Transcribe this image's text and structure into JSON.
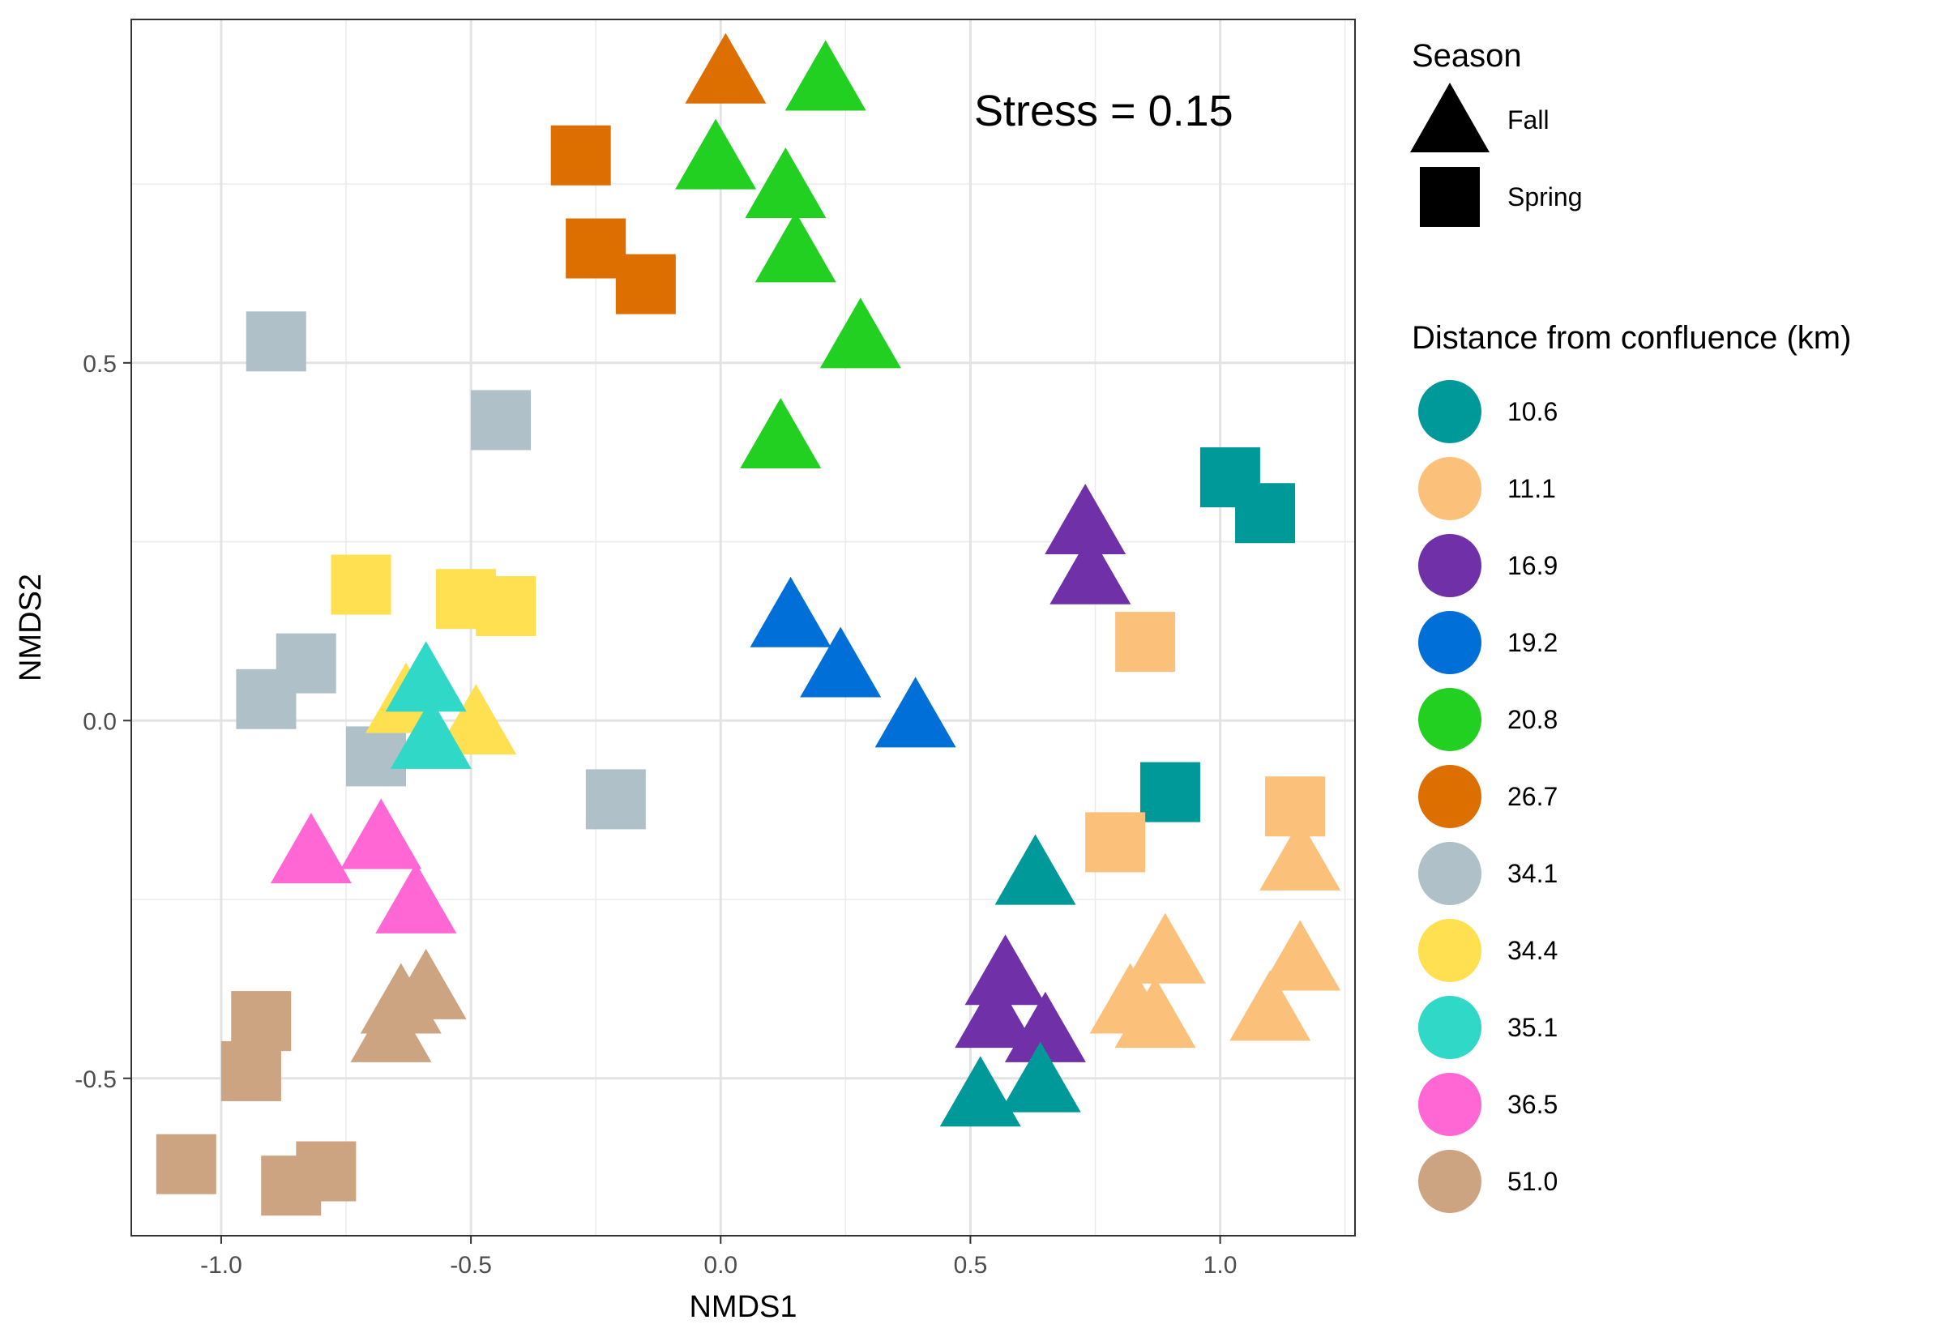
{
  "chart_data": {
    "type": "scatter",
    "xlabel": "NMDS1",
    "ylabel": "NMDS2",
    "xlim": [
      -1.18,
      1.27
    ],
    "ylim": [
      -0.72,
      0.98
    ],
    "x_ticks": [
      -1.0,
      -0.5,
      0.0,
      0.5,
      1.0
    ],
    "x_tick_labels": [
      "-1.0",
      "-0.5",
      "0.0",
      "0.5",
      "1.0"
    ],
    "y_ticks": [
      -0.5,
      0.0,
      0.5
    ],
    "y_tick_labels": [
      "-0.5",
      "0.0",
      "0.5"
    ],
    "grid": true,
    "annotation": "Stress = 0.15",
    "legend_position": "right",
    "shape_legend": {
      "title": "Season",
      "entries": [
        {
          "label": "Fall",
          "shape": "triangle"
        },
        {
          "label": "Spring",
          "shape": "square"
        }
      ]
    },
    "color_legend": {
      "title": "Distance from confluence (km)",
      "entries": [
        {
          "label": "10.6",
          "color": "#009999"
        },
        {
          "label": "11.1",
          "color": "#FBC07A"
        },
        {
          "label": "16.9",
          "color": "#7030A8"
        },
        {
          "label": "19.2",
          "color": "#0070D8"
        },
        {
          "label": "20.8",
          "color": "#22D022"
        },
        {
          "label": "26.7",
          "color": "#DD6E00"
        },
        {
          "label": "34.1",
          "color": "#B0C0C8"
        },
        {
          "label": "34.4",
          "color": "#FFE050"
        },
        {
          "label": "35.1",
          "color": "#30D8C8"
        },
        {
          "label": "36.5",
          "color": "#FF68D4"
        },
        {
          "label": "51.0",
          "color": "#CDA481"
        }
      ]
    },
    "points": [
      {
        "x": 0.01,
        "y": 0.9,
        "season": "Fall",
        "distance": "26.7"
      },
      {
        "x": -0.28,
        "y": 0.79,
        "season": "Spring",
        "distance": "26.7"
      },
      {
        "x": -0.25,
        "y": 0.66,
        "season": "Spring",
        "distance": "26.7"
      },
      {
        "x": -0.15,
        "y": 0.61,
        "season": "Spring",
        "distance": "26.7"
      },
      {
        "x": 0.21,
        "y": 0.89,
        "season": "Fall",
        "distance": "20.8"
      },
      {
        "x": -0.01,
        "y": 0.78,
        "season": "Fall",
        "distance": "20.8"
      },
      {
        "x": 0.13,
        "y": 0.74,
        "season": "Fall",
        "distance": "20.8"
      },
      {
        "x": 0.15,
        "y": 0.65,
        "season": "Fall",
        "distance": "20.8"
      },
      {
        "x": 0.28,
        "y": 0.53,
        "season": "Fall",
        "distance": "20.8"
      },
      {
        "x": 0.12,
        "y": 0.39,
        "season": "Fall",
        "distance": "20.8"
      },
      {
        "x": -0.89,
        "y": 0.53,
        "season": "Spring",
        "distance": "34.1"
      },
      {
        "x": -0.44,
        "y": 0.42,
        "season": "Spring",
        "distance": "34.1"
      },
      {
        "x": -0.83,
        "y": 0.08,
        "season": "Spring",
        "distance": "34.1"
      },
      {
        "x": -0.91,
        "y": 0.03,
        "season": "Spring",
        "distance": "34.1"
      },
      {
        "x": -0.69,
        "y": -0.05,
        "season": "Spring",
        "distance": "34.1"
      },
      {
        "x": -0.21,
        "y": -0.11,
        "season": "Spring",
        "distance": "34.1"
      },
      {
        "x": -0.72,
        "y": 0.19,
        "season": "Spring",
        "distance": "34.4"
      },
      {
        "x": -0.51,
        "y": 0.17,
        "season": "Spring",
        "distance": "34.4"
      },
      {
        "x": -0.43,
        "y": 0.16,
        "season": "Spring",
        "distance": "34.4"
      },
      {
        "x": -0.63,
        "y": 0.02,
        "season": "Fall",
        "distance": "34.4"
      },
      {
        "x": -0.49,
        "y": -0.01,
        "season": "Fall",
        "distance": "34.4"
      },
      {
        "x": -0.59,
        "y": 0.05,
        "season": "Fall",
        "distance": "35.1"
      },
      {
        "x": -0.58,
        "y": -0.03,
        "season": "Fall",
        "distance": "35.1"
      },
      {
        "x": -0.82,
        "y": -0.19,
        "season": "Fall",
        "distance": "36.5"
      },
      {
        "x": -0.68,
        "y": -0.17,
        "season": "Fall",
        "distance": "36.5"
      },
      {
        "x": -0.61,
        "y": -0.26,
        "season": "Fall",
        "distance": "36.5"
      },
      {
        "x": -0.59,
        "y": -0.38,
        "season": "Fall",
        "distance": "51.0"
      },
      {
        "x": -0.64,
        "y": -0.4,
        "season": "Fall",
        "distance": "51.0"
      },
      {
        "x": -0.66,
        "y": -0.44,
        "season": "Fall",
        "distance": "51.0"
      },
      {
        "x": -0.92,
        "y": -0.42,
        "season": "Spring",
        "distance": "51.0"
      },
      {
        "x": -0.94,
        "y": -0.49,
        "season": "Spring",
        "distance": "51.0"
      },
      {
        "x": -1.07,
        "y": -0.62,
        "season": "Spring",
        "distance": "51.0"
      },
      {
        "x": -0.86,
        "y": -0.65,
        "season": "Spring",
        "distance": "51.0"
      },
      {
        "x": -0.79,
        "y": -0.63,
        "season": "Spring",
        "distance": "51.0"
      },
      {
        "x": 0.14,
        "y": 0.14,
        "season": "Fall",
        "distance": "19.2"
      },
      {
        "x": 0.24,
        "y": 0.07,
        "season": "Fall",
        "distance": "19.2"
      },
      {
        "x": 0.39,
        "y": 0.0,
        "season": "Fall",
        "distance": "19.2"
      },
      {
        "x": 0.73,
        "y": 0.27,
        "season": "Fall",
        "distance": "16.9"
      },
      {
        "x": 0.74,
        "y": 0.2,
        "season": "Fall",
        "distance": "16.9"
      },
      {
        "x": 0.57,
        "y": -0.36,
        "season": "Fall",
        "distance": "16.9"
      },
      {
        "x": 0.55,
        "y": -0.42,
        "season": "Fall",
        "distance": "16.9"
      },
      {
        "x": 0.65,
        "y": -0.44,
        "season": "Fall",
        "distance": "16.9"
      },
      {
        "x": 1.02,
        "y": 0.34,
        "season": "Spring",
        "distance": "10.6"
      },
      {
        "x": 1.09,
        "y": 0.29,
        "season": "Spring",
        "distance": "10.6"
      },
      {
        "x": 0.9,
        "y": -0.1,
        "season": "Spring",
        "distance": "10.6"
      },
      {
        "x": 0.63,
        "y": -0.22,
        "season": "Fall",
        "distance": "10.6"
      },
      {
        "x": 0.64,
        "y": -0.51,
        "season": "Fall",
        "distance": "10.6"
      },
      {
        "x": 0.52,
        "y": -0.53,
        "season": "Fall",
        "distance": "10.6"
      },
      {
        "x": 0.85,
        "y": 0.11,
        "season": "Spring",
        "distance": "11.1"
      },
      {
        "x": 0.79,
        "y": -0.17,
        "season": "Spring",
        "distance": "11.1"
      },
      {
        "x": 1.15,
        "y": -0.12,
        "season": "Spring",
        "distance": "11.1"
      },
      {
        "x": 1.16,
        "y": -0.2,
        "season": "Fall",
        "distance": "11.1"
      },
      {
        "x": 0.89,
        "y": -0.33,
        "season": "Fall",
        "distance": "11.1"
      },
      {
        "x": 1.16,
        "y": -0.34,
        "season": "Fall",
        "distance": "11.1"
      },
      {
        "x": 0.82,
        "y": -0.4,
        "season": "Fall",
        "distance": "11.1"
      },
      {
        "x": 0.87,
        "y": -0.42,
        "season": "Fall",
        "distance": "11.1"
      },
      {
        "x": 1.1,
        "y": -0.41,
        "season": "Fall",
        "distance": "11.1"
      }
    ]
  }
}
